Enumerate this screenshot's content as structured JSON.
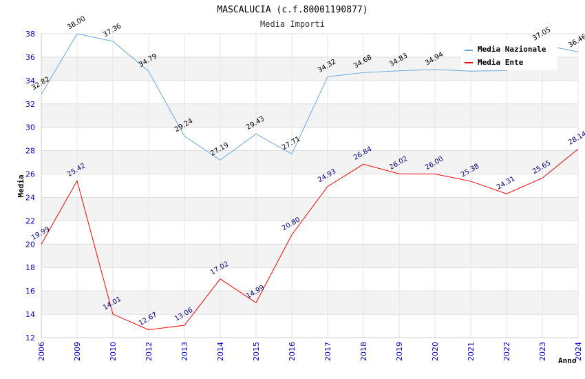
{
  "chart_data": {
    "type": "line",
    "title": "MASCALUCIA (c.f.80001190877)",
    "subtitle": "Media Importi",
    "xlabel": "Anno",
    "ylabel": "Media",
    "ylim": [
      12,
      38
    ],
    "yticks": [
      "12",
      "14",
      "16",
      "18",
      "20",
      "22",
      "24",
      "26",
      "28",
      "30",
      "32",
      "34",
      "36",
      "38"
    ],
    "categories": [
      "2006",
      "2009",
      "2010",
      "2012",
      "2013",
      "2014",
      "2015",
      "2016",
      "2017",
      "2018",
      "2019",
      "2020",
      "2021",
      "2022",
      "2023",
      "2024"
    ],
    "series": [
      {
        "name": "Media Nazionale",
        "color": "#6aa8e0",
        "values": [
          32.82,
          38.0,
          37.36,
          34.79,
          29.24,
          27.19,
          29.43,
          27.71,
          34.32,
          34.68,
          34.83,
          34.94,
          34.8,
          34.85,
          37.05,
          36.46
        ],
        "labels": [
          "32.82",
          "38.00",
          "37.36",
          "34.79",
          "29.24",
          "27.19",
          "29.43",
          "27.71",
          "34.32",
          "34.68",
          "34.83",
          "34.94",
          "",
          "",
          "37.05",
          "36.46"
        ]
      },
      {
        "name": "Media Ente",
        "color": "#ff0000",
        "values": [
          19.99,
          25.42,
          14.01,
          12.67,
          13.06,
          17.02,
          14.99,
          20.8,
          24.93,
          26.84,
          26.02,
          26.0,
          25.38,
          24.31,
          25.65,
          28.14
        ],
        "labels": [
          "19.99",
          "25.42",
          "14.01",
          "12.67",
          "13.06",
          "17.02",
          "14.99",
          "20.80",
          "24.93",
          "26.84",
          "26.02",
          "26.00",
          "25.38",
          "24.31",
          "25.65",
          "28.14"
        ]
      }
    ],
    "legend": {
      "position": "top-right"
    }
  }
}
